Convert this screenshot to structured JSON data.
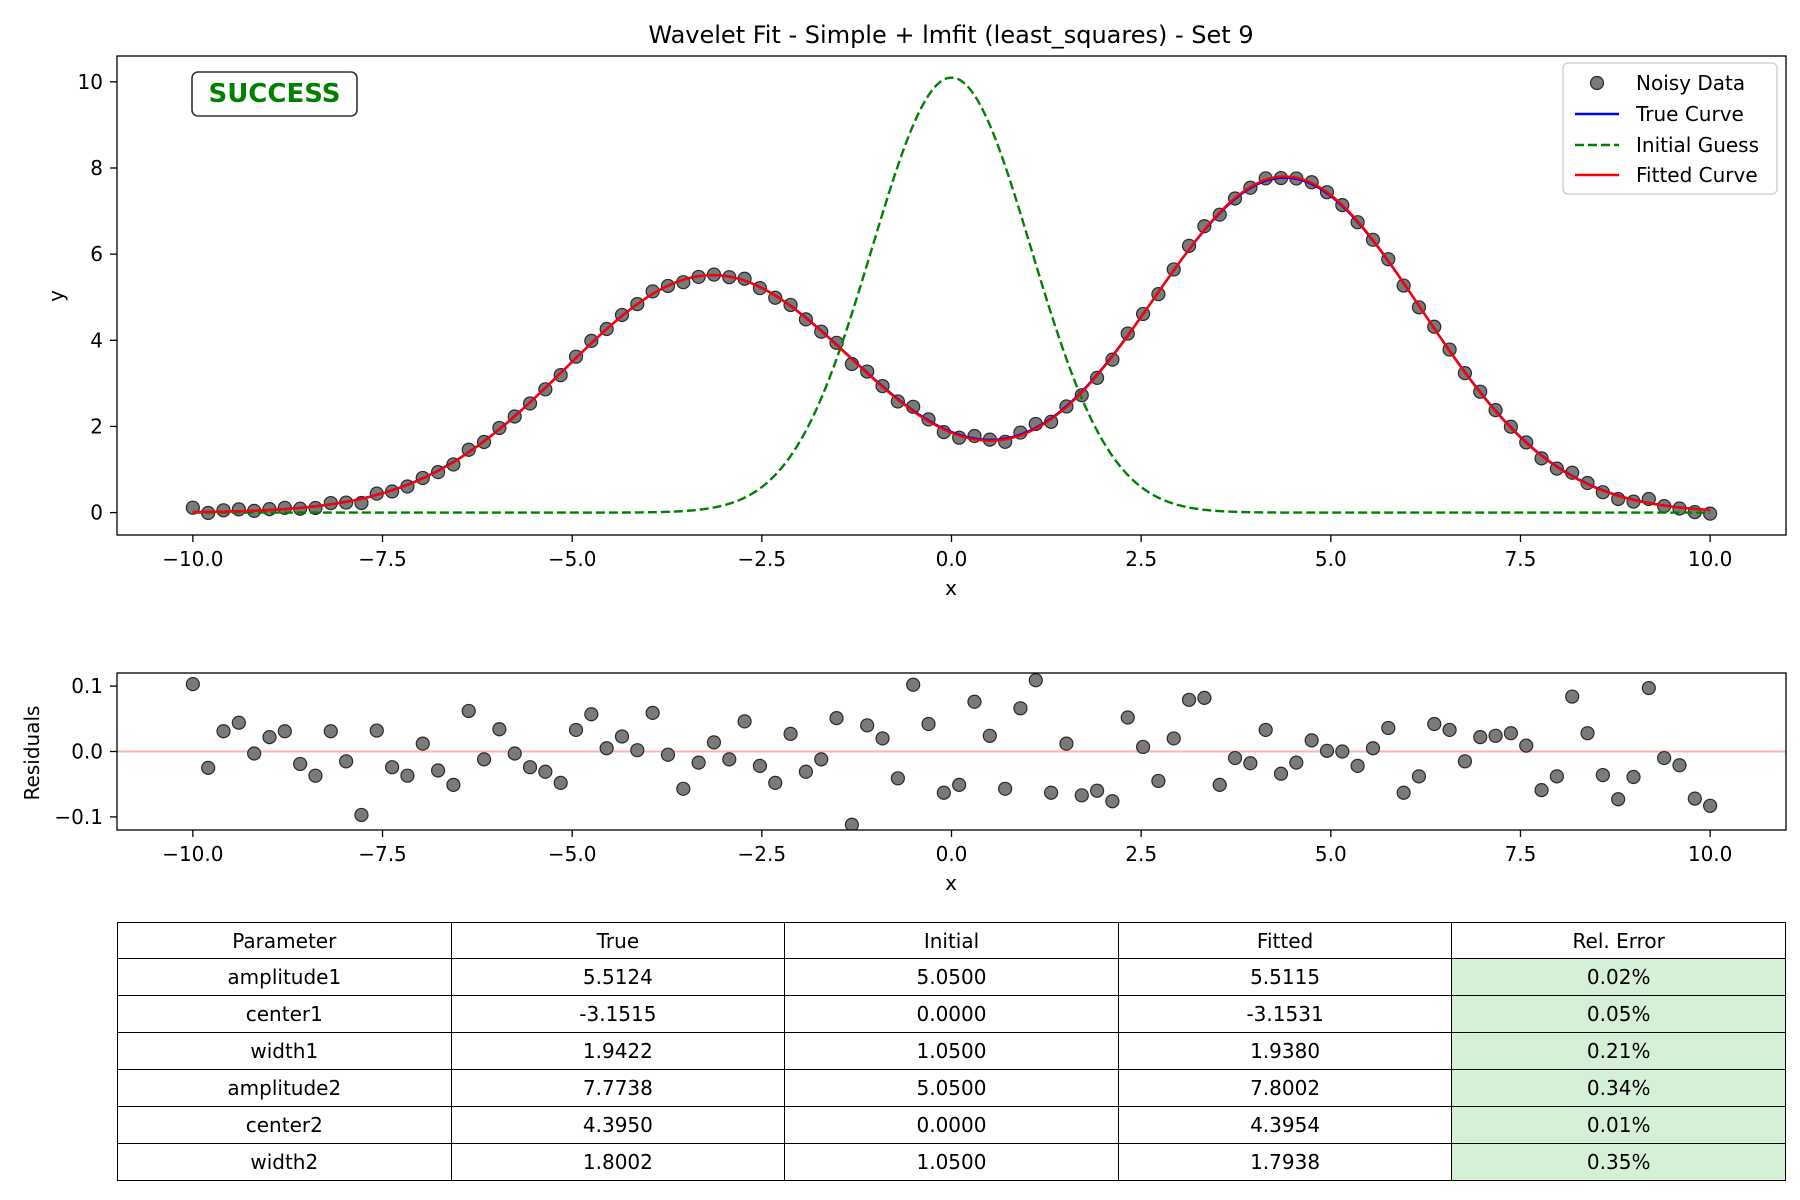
{
  "title": "Wavelet Fit - Simple + lmfit (least_squares) - Set 9",
  "status_badge": "SUCCESS",
  "colors": {
    "noisy": "#7a7a7a",
    "true_curve": "#0000ff",
    "initial_guess": "#008000",
    "fitted_curve": "#ff0000",
    "success": "#008000",
    "rel_error_bg": "#d6f0d8"
  },
  "chart_data": [
    {
      "type": "line",
      "title": "Wavelet Fit - Simple + lmfit (least_squares) - Set 9",
      "xlabel": "x",
      "ylabel": "y",
      "xlim": [
        -11.0,
        11.0
      ],
      "ylim": [
        -0.52,
        10.6
      ],
      "xticks": [
        -10.0,
        -7.5,
        -5.0,
        -2.5,
        0.0,
        2.5,
        5.0,
        7.5,
        10.0
      ],
      "xtick_labels": [
        "−10.0",
        "−7.5",
        "−5.0",
        "−2.5",
        "0.0",
        "2.5",
        "5.0",
        "7.5",
        "10.0"
      ],
      "yticks": [
        0,
        2,
        4,
        6,
        8,
        10
      ],
      "ytick_labels": [
        "0",
        "2",
        "4",
        "6",
        "8",
        "10"
      ],
      "legend": "top-right",
      "grid": false,
      "model": {
        "true": {
          "amplitude1": 5.5124,
          "center1": -3.1515,
          "width1": 1.9422,
          "amplitude2": 7.7738,
          "center2": 4.395,
          "width2": 1.8002
        },
        "initial": {
          "amplitude1": 5.05,
          "center1": 0.0,
          "width1": 1.05,
          "amplitude2": 5.05,
          "center2": 0.0,
          "width2": 1.05
        },
        "fitted": {
          "amplitude1": 5.5115,
          "center1": -3.1531,
          "width1": 1.938,
          "amplitude2": 7.8002,
          "center2": 4.3954,
          "width2": 1.7938
        }
      },
      "series": [
        {
          "name": "Noisy Data",
          "style": "markers",
          "x_range": [
            -10.0,
            10.0
          ],
          "n_points": 100
        },
        {
          "name": "True Curve",
          "style": "solid"
        },
        {
          "name": "Initial Guess",
          "style": "dashed"
        },
        {
          "name": "Fitted Curve",
          "style": "solid"
        }
      ]
    },
    {
      "type": "scatter",
      "xlabel": "x",
      "ylabel": "Residuals",
      "xlim": [
        -11.0,
        11.0
      ],
      "ylim": [
        -0.12,
        0.12
      ],
      "xticks": [
        -10.0,
        -7.5,
        -5.0,
        -2.5,
        0.0,
        2.5,
        5.0,
        7.5,
        10.0
      ],
      "xtick_labels": [
        "−10.0",
        "−7.5",
        "−5.0",
        "−2.5",
        "0.0",
        "2.5",
        "5.0",
        "7.5",
        "10.0"
      ],
      "yticks": [
        -0.1,
        0.0,
        0.1
      ],
      "ytick_labels": [
        "−0.1",
        "0.0",
        "0.1"
      ],
      "reference_line": 0.0,
      "residuals": [
        0.103,
        -0.025,
        0.031,
        0.044,
        -0.003,
        0.022,
        0.031,
        -0.019,
        -0.037,
        0.031,
        -0.015,
        -0.097,
        0.032,
        -0.024,
        -0.037,
        0.012,
        -0.029,
        -0.051,
        0.062,
        -0.012,
        0.034,
        -0.003,
        -0.024,
        -0.031,
        -0.048,
        0.033,
        0.057,
        0.005,
        0.023,
        0.002,
        0.059,
        -0.005,
        -0.057,
        -0.017,
        0.014,
        -0.012,
        0.046,
        -0.022,
        -0.048,
        0.027,
        -0.031,
        -0.012,
        0.051,
        -0.112,
        0.04,
        0.02,
        -0.041,
        0.102,
        0.042,
        -0.063,
        -0.051,
        0.076,
        0.024,
        -0.057,
        0.066,
        0.109,
        -0.063,
        0.012,
        -0.067,
        -0.06,
        -0.076,
        0.052,
        0.007,
        -0.045,
        0.02,
        0.079,
        0.082,
        -0.051,
        -0.01,
        -0.018,
        0.033,
        -0.034,
        -0.017,
        0.017,
        0.001,
        0.0,
        -0.022,
        0.005,
        0.036,
        -0.063,
        -0.038,
        0.042,
        0.033,
        -0.015,
        0.022,
        0.024,
        0.028,
        0.009,
        -0.059,
        -0.038,
        0.084,
        0.028,
        -0.036,
        -0.073,
        -0.039,
        0.097,
        -0.01,
        -0.021,
        -0.072,
        -0.083
      ]
    }
  ],
  "table": {
    "headers": [
      "Parameter",
      "True",
      "Initial",
      "Fitted",
      "Rel. Error"
    ],
    "rows": [
      [
        "amplitude1",
        "5.5124",
        "5.0500",
        "5.5115",
        "0.02%"
      ],
      [
        "center1",
        "-3.1515",
        "0.0000",
        "-3.1531",
        "0.05%"
      ],
      [
        "width1",
        "1.9422",
        "1.0500",
        "1.9380",
        "0.21%"
      ],
      [
        "amplitude2",
        "7.7738",
        "5.0500",
        "7.8002",
        "0.34%"
      ],
      [
        "center2",
        "4.3950",
        "0.0000",
        "4.3954",
        "0.01%"
      ],
      [
        "width2",
        "1.8002",
        "1.0500",
        "1.7938",
        "0.35%"
      ]
    ]
  }
}
